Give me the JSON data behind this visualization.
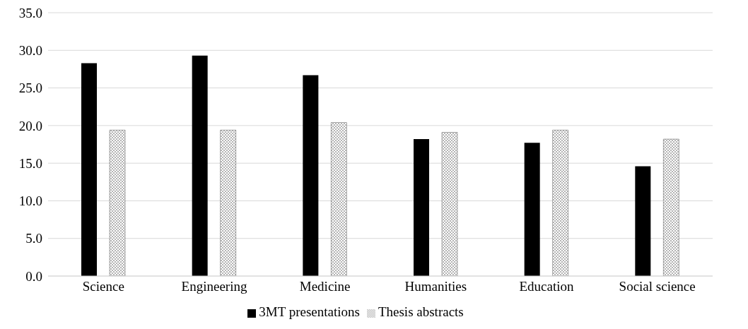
{
  "chart_data": {
    "type": "bar",
    "categories": [
      "Science",
      "Engineering",
      "Medicine",
      "Humanities",
      "Education",
      "Social science"
    ],
    "series": [
      {
        "name": "3MT presentations",
        "color": "#000000",
        "values": [
          28.3,
          29.3,
          26.7,
          18.2,
          17.7,
          14.6
        ]
      },
      {
        "name": "Thesis abstracts",
        "color": "#555555",
        "values": [
          19.4,
          19.4,
          20.4,
          19.1,
          19.4,
          18.2
        ]
      }
    ],
    "ylim": [
      0,
      35
    ],
    "yticks": [
      {
        "value": 0,
        "label": "0.0"
      },
      {
        "value": 5,
        "label": "5.0"
      },
      {
        "value": 10,
        "label": "10.0"
      },
      {
        "value": 15,
        "label": "15.0"
      },
      {
        "value": 20,
        "label": "20.0"
      },
      {
        "value": 25,
        "label": "25.0"
      },
      {
        "value": 30,
        "label": "30.0"
      },
      {
        "value": 35,
        "label": "35.0"
      }
    ],
    "grid": "y",
    "legend": "bottom"
  }
}
